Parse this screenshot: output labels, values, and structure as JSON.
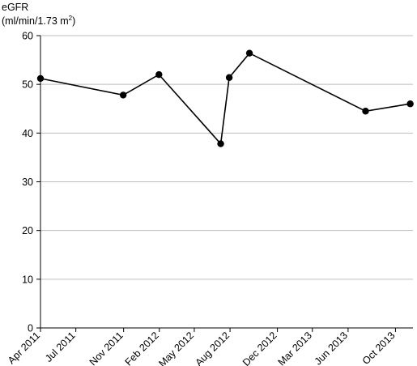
{
  "chart_data": {
    "type": "line",
    "title": "",
    "xlabel": "",
    "ylabel": {
      "line1": "eGFR",
      "line2_prefix": "(ml/min/1.73 m",
      "line2_sup": "2",
      "line2_suffix": ")"
    },
    "ylim": [
      0,
      60
    ],
    "yticks": [
      0,
      10,
      20,
      30,
      40,
      50,
      60
    ],
    "xlim": [
      "2011-04-01",
      "2013-11-15"
    ],
    "xticks": [
      {
        "date": "2011-04-01",
        "label": "Apr 2011"
      },
      {
        "date": "2011-07-01",
        "label": "Jul 2011"
      },
      {
        "date": "2011-11-01",
        "label": "Nov 2011"
      },
      {
        "date": "2012-02-01",
        "label": "Feb 2012"
      },
      {
        "date": "2012-05-01",
        "label": "May 2012"
      },
      {
        "date": "2012-08-01",
        "label": "Aug 2012"
      },
      {
        "date": "2012-12-01",
        "label": "Dec 2012"
      },
      {
        "date": "2013-03-01",
        "label": "Mar 2013"
      },
      {
        "date": "2013-06-01",
        "label": "Jun 2013"
      },
      {
        "date": "2013-10-01",
        "label": "Oct 2013"
      }
    ],
    "grid": {
      "horizontal": true,
      "vertical": false
    },
    "series": [
      {
        "points": [
          {
            "x": "2011-04-01",
            "y": 51.2
          },
          {
            "x": "2011-10-31",
            "y": 47.8
          },
          {
            "x": "2012-01-31",
            "y": 52.0
          },
          {
            "x": "2012-07-08",
            "y": 37.8
          },
          {
            "x": "2012-07-30",
            "y": 51.4
          },
          {
            "x": "2012-09-20",
            "y": 56.4
          },
          {
            "x": "2013-07-16",
            "y": 44.5
          },
          {
            "x": "2013-11-08",
            "y": 46.0
          }
        ]
      }
    ],
    "colors": {
      "line": "#000000",
      "marker": "#000000",
      "grid": "#bdbdbd",
      "axis": "#000000"
    }
  }
}
